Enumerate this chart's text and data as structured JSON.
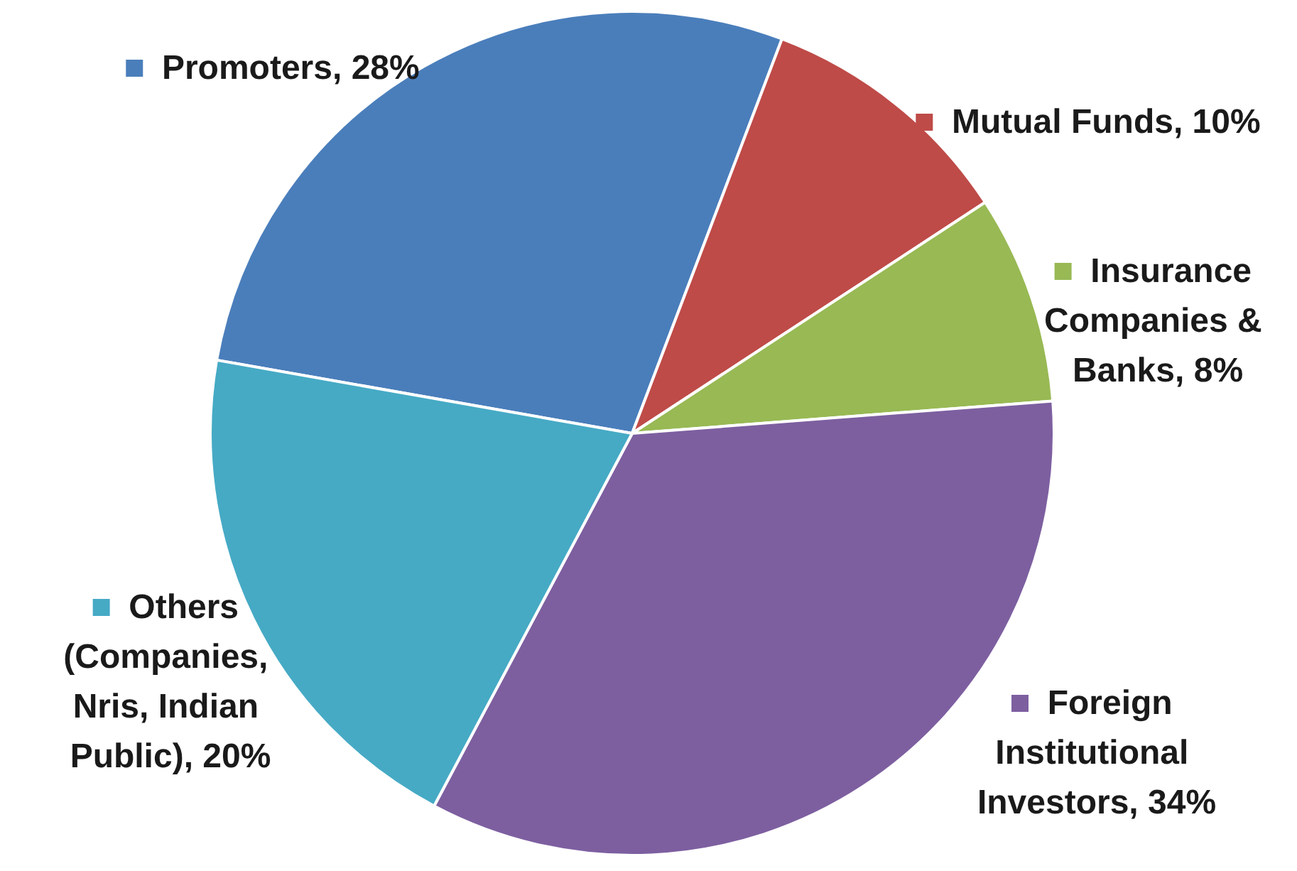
{
  "chart_data": {
    "type": "pie",
    "categories": [
      "Promoters",
      "Mutual Funds",
      "Insurance Companies & Banks",
      "Foreign Institutional Investors",
      "Others (Companies, Nris, Indian Public)"
    ],
    "values": [
      28,
      10,
      8,
      34,
      20
    ],
    "value_labels": [
      "28%",
      "10%",
      "8%",
      "34%",
      "20%"
    ],
    "colors": [
      "#4a7ebb",
      "#be4b48",
      "#98b954",
      "#7d5fa0",
      "#46aac5"
    ],
    "legend": "right"
  }
}
